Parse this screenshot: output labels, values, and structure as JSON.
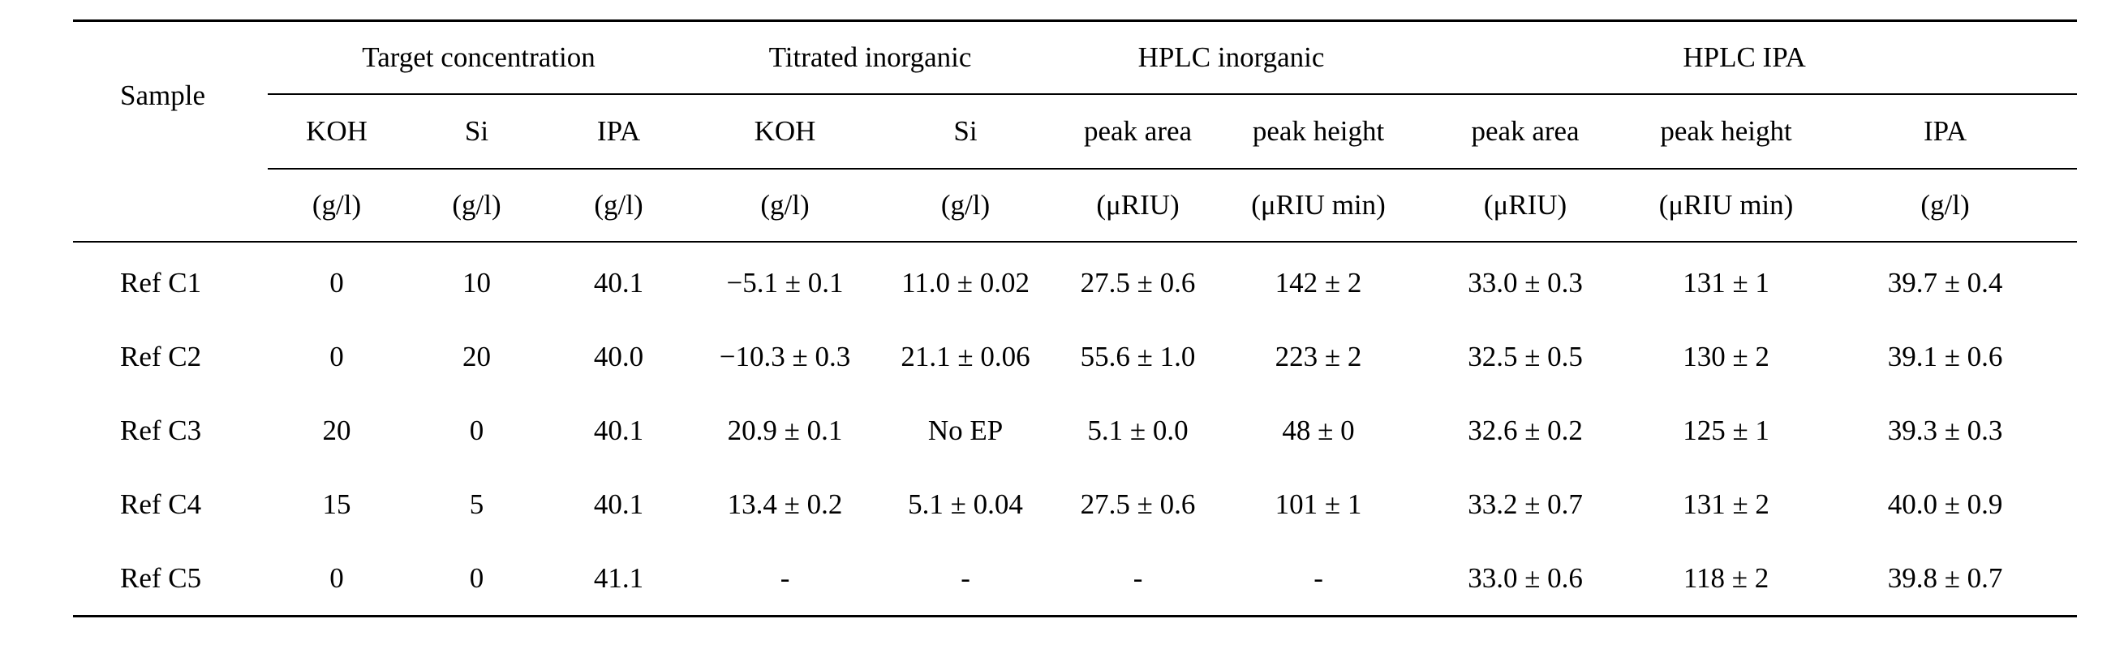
{
  "table": {
    "sample_header": "Sample",
    "groups": [
      {
        "label": "Target concentration",
        "span": 3
      },
      {
        "label": "Titrated inorganic",
        "span": 2
      },
      {
        "label": "HPLC inorganic",
        "span": 2
      },
      {
        "label": "HPLC IPA",
        "span": 3
      }
    ],
    "columns": [
      {
        "name": "KOH",
        "unit": "(g/l)"
      },
      {
        "name": "Si",
        "unit": "(g/l)"
      },
      {
        "name": "IPA",
        "unit": "(g/l)"
      },
      {
        "name": "KOH",
        "unit": "(g/l)"
      },
      {
        "name": "Si",
        "unit": "(g/l)"
      },
      {
        "name": "peak area",
        "unit": "(μRIU)"
      },
      {
        "name": "peak height",
        "unit": "(μRIU min)"
      },
      {
        "name": "peak area",
        "unit": "(μRIU)"
      },
      {
        "name": "peak height",
        "unit": "(μRIU min)"
      },
      {
        "name": "IPA",
        "unit": "(g/l)"
      }
    ],
    "rows": [
      {
        "sample": "Ref C1",
        "cells": [
          "0",
          "10",
          "40.1",
          "−5.1 ± 0.1",
          "11.0 ± 0.02",
          "27.5 ± 0.6",
          "142 ± 2",
          "33.0 ± 0.3",
          "131 ± 1",
          "39.7 ± 0.4"
        ]
      },
      {
        "sample": "Ref C2",
        "cells": [
          "0",
          "20",
          "40.0",
          "−10.3 ± 0.3",
          "21.1 ± 0.06",
          "55.6 ± 1.0",
          "223 ± 2",
          "32.5 ± 0.5",
          "130 ± 2",
          "39.1 ± 0.6"
        ]
      },
      {
        "sample": "Ref C3",
        "cells": [
          "20",
          "0",
          "40.1",
          "20.9 ± 0.1",
          "No EP",
          "5.1 ± 0.0",
          "48 ± 0",
          "32.6 ± 0.2",
          "125 ± 1",
          "39.3 ± 0.3"
        ]
      },
      {
        "sample": "Ref C4",
        "cells": [
          "15",
          "5",
          "40.1",
          "13.4 ± 0.2",
          "5.1 ± 0.04",
          "27.5 ± 0.6",
          "101 ± 1",
          "33.2 ± 0.7",
          "131 ± 2",
          "40.0 ± 0.9"
        ]
      },
      {
        "sample": "Ref C5",
        "cells": [
          "0",
          "0",
          "41.1",
          "-",
          "-",
          "-",
          "-",
          "33.0 ± 0.6",
          "118 ± 2",
          "39.8 ± 0.7"
        ]
      }
    ]
  }
}
